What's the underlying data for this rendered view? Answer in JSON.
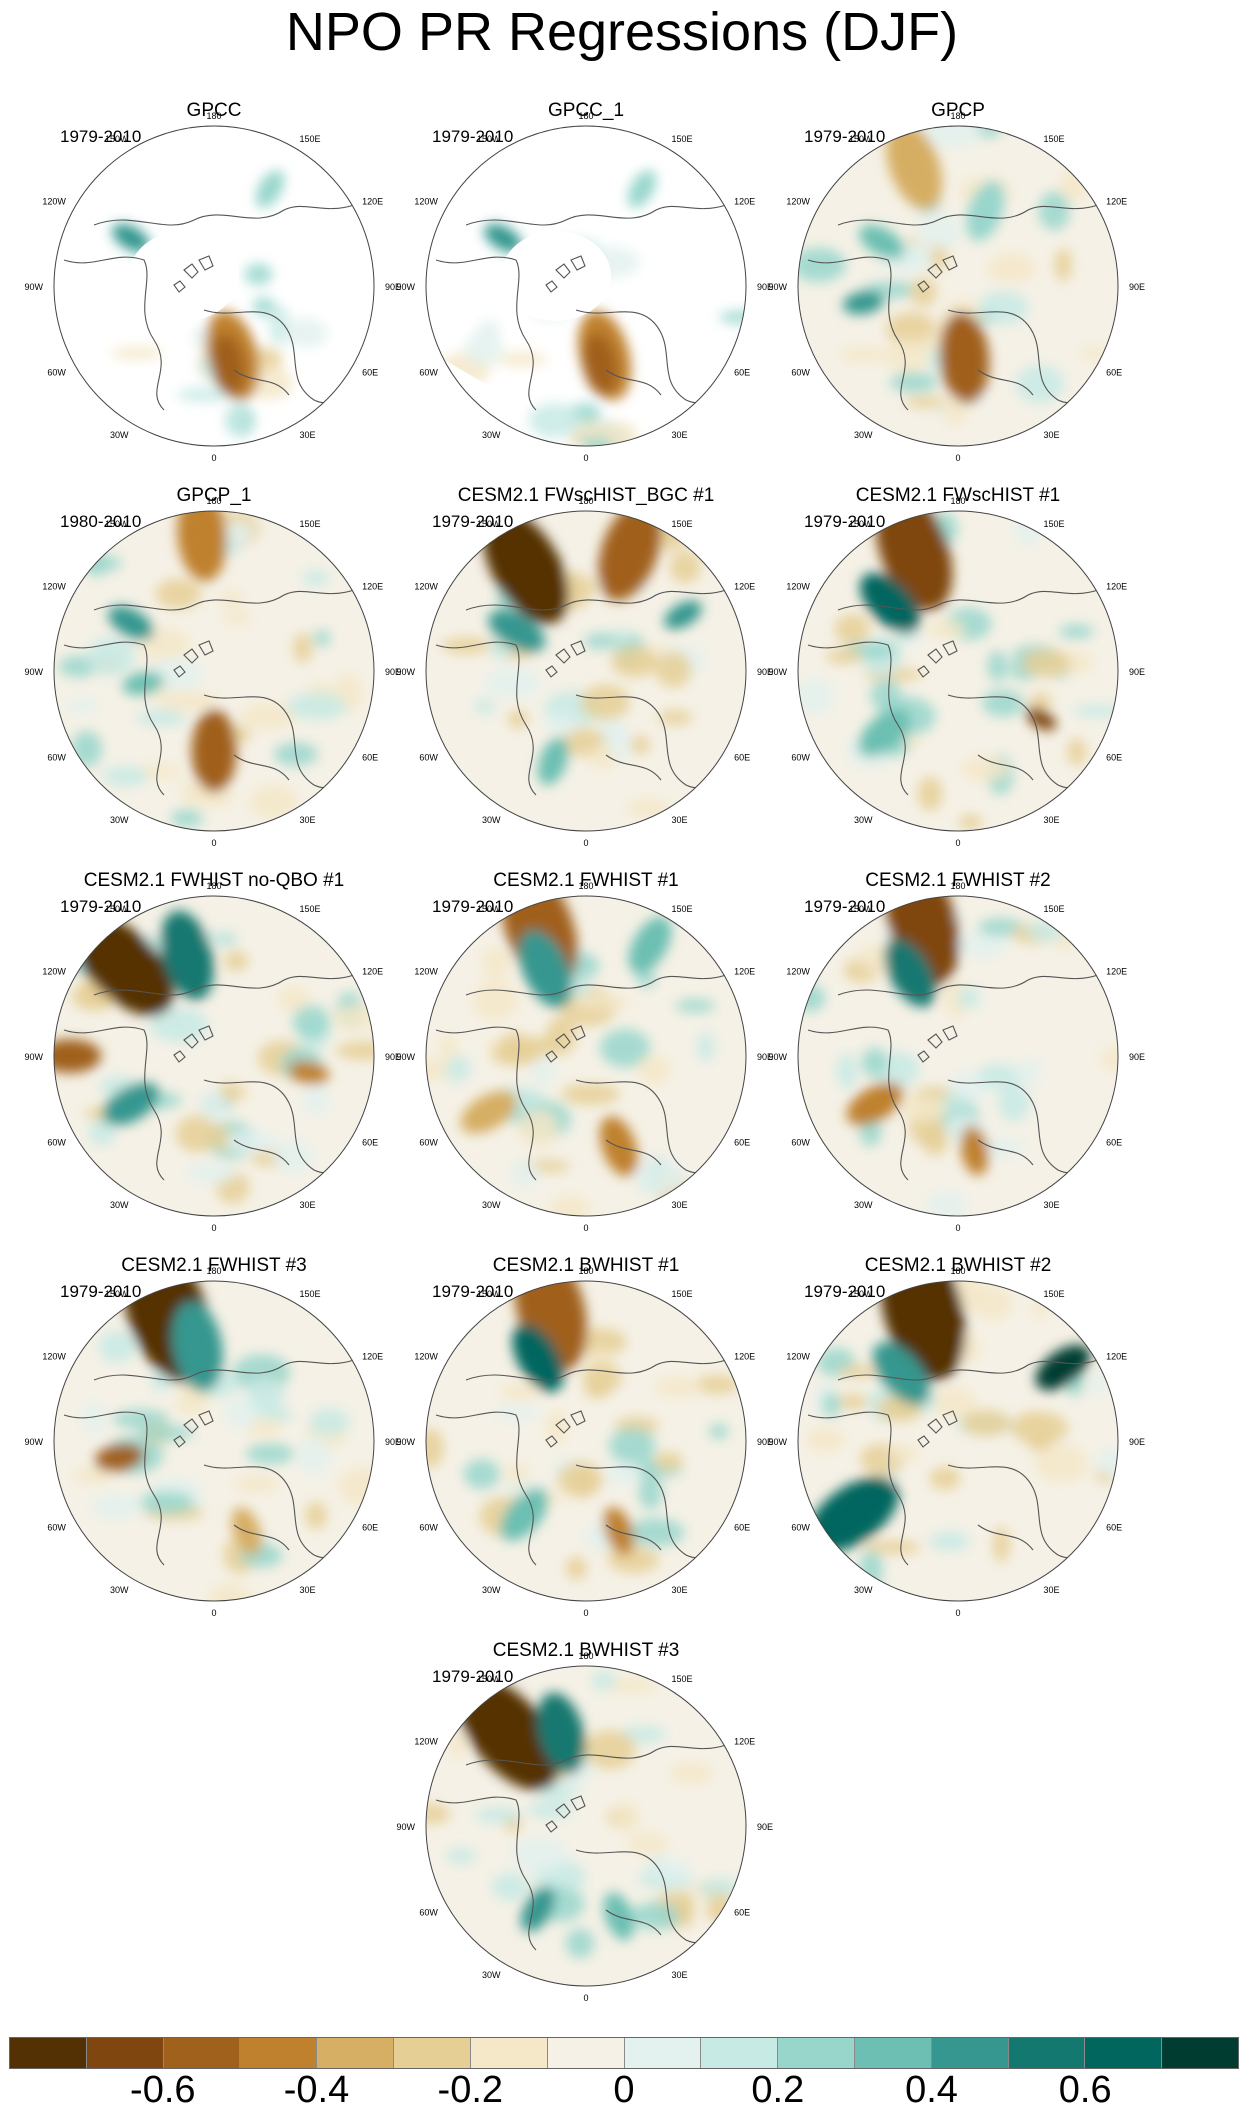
{
  "figure": {
    "title": "NPO PR Regressions (DJF)",
    "panels": [
      {
        "title": "GPCC",
        "years": "1979-2010",
        "variant": "gpcc"
      },
      {
        "title": "GPCC_1",
        "years": "1979-2010",
        "variant": "gpcc"
      },
      {
        "title": "GPCP",
        "years": "1979-2010",
        "variant": "full"
      },
      {
        "title": "GPCP_1",
        "years": "1980-2010",
        "variant": "full"
      },
      {
        "title": "CESM2.1 FWscHIST_BGC #1",
        "years": "1979-2010",
        "variant": "full"
      },
      {
        "title": "CESM2.1 FWscHIST #1",
        "years": "1979-2010",
        "variant": "full"
      },
      {
        "title": "CESM2.1 FWHIST no-QBO #1",
        "years": "1979-2010",
        "variant": "full"
      },
      {
        "title": "CESM2.1 FWHIST #1",
        "years": "1979-2010",
        "variant": "full"
      },
      {
        "title": "CESM2.1 FWHIST #2",
        "years": "1979-2010",
        "variant": "full"
      },
      {
        "title": "CESM2.1 FWHIST #3",
        "years": "1979-2010",
        "variant": "full"
      },
      {
        "title": "CESM2.1 BWHIST #1",
        "years": "1979-2010",
        "variant": "full"
      },
      {
        "title": "CESM2.1 BWHIST #2",
        "years": "1979-2010",
        "variant": "full"
      },
      {
        "title": "CESM2.1 BWHIST #3",
        "years": "1979-2010",
        "variant": "full"
      }
    ],
    "longitude_labels": [
      "180",
      "150E",
      "120E",
      "90E",
      "60E",
      "30E",
      "0",
      "30W",
      "60W",
      "90W",
      "120W",
      "150W"
    ],
    "colorbar": {
      "colors": [
        "#543005",
        "#7f470f",
        "#a0611d",
        "#bf812d",
        "#d6ae64",
        "#e6cf95",
        "#f5e8c8",
        "#f5f1e6",
        "#e3f1ef",
        "#c7eae5",
        "#98d6cc",
        "#6cbfb2",
        "#35978f",
        "#13786f",
        "#01665e",
        "#003c30"
      ],
      "tick_labels": [
        "-0.6",
        "-0.4",
        "-0.2",
        "0",
        "0.2",
        "0.4",
        "0.6"
      ],
      "tick_values": [
        -0.6,
        -0.4,
        -0.2,
        0,
        0.2,
        0.4,
        0.6
      ],
      "range": [
        -0.8,
        0.8
      ]
    }
  }
}
